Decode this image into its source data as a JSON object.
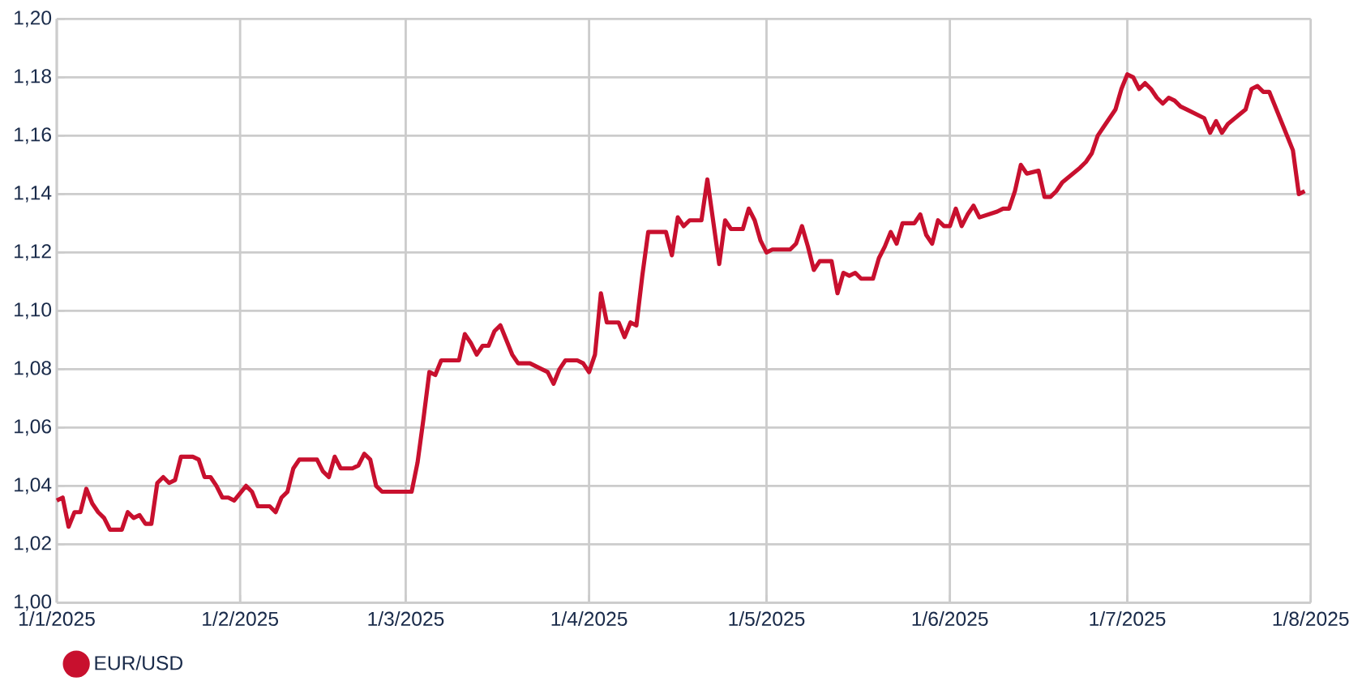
{
  "chart_data": {
    "type": "line",
    "x": [
      "2025-01-01",
      "2025-01-02",
      "2025-01-03",
      "2025-01-04",
      "2025-01-05",
      "2025-01-06",
      "2025-01-07",
      "2025-01-08",
      "2025-01-09",
      "2025-01-10",
      "2025-01-11",
      "2025-01-12",
      "2025-01-13",
      "2025-01-14",
      "2025-01-15",
      "2025-01-16",
      "2025-01-17",
      "2025-01-18",
      "2025-01-19",
      "2025-01-20",
      "2025-01-21",
      "2025-01-22",
      "2025-01-24",
      "2025-01-25",
      "2025-01-26",
      "2025-01-27",
      "2025-01-28",
      "2025-01-29",
      "2025-01-30",
      "2025-01-31",
      "2025-02-02",
      "2025-02-03",
      "2025-02-04",
      "2025-02-06",
      "2025-02-07",
      "2025-02-08",
      "2025-02-09",
      "2025-02-10",
      "2025-02-11",
      "2025-02-13",
      "2025-02-14",
      "2025-02-15",
      "2025-02-16",
      "2025-02-17",
      "2025-02-18",
      "2025-02-20",
      "2025-02-21",
      "2025-02-22",
      "2025-02-23",
      "2025-02-24",
      "2025-02-25",
      "2025-02-28",
      "2025-03-02",
      "2025-03-03",
      "2025-03-04",
      "2025-03-05",
      "2025-03-06",
      "2025-03-07",
      "2025-03-10",
      "2025-03-11",
      "2025-03-12",
      "2025-03-13",
      "2025-03-14",
      "2025-03-15",
      "2025-03-16",
      "2025-03-17",
      "2025-03-18",
      "2025-03-19",
      "2025-03-20",
      "2025-03-22",
      "2025-03-24",
      "2025-03-25",
      "2025-03-26",
      "2025-03-27",
      "2025-03-28",
      "2025-03-30",
      "2025-03-31",
      "2025-04-01",
      "2025-04-02",
      "2025-04-03",
      "2025-04-04",
      "2025-04-06",
      "2025-04-07",
      "2025-04-08",
      "2025-04-09",
      "2025-04-10",
      "2025-04-11",
      "2025-04-13",
      "2025-04-14",
      "2025-04-15",
      "2025-04-16",
      "2025-04-17",
      "2025-04-18",
      "2025-04-20",
      "2025-04-21",
      "2025-04-23",
      "2025-04-24",
      "2025-04-25",
      "2025-04-27",
      "2025-04-28",
      "2025-04-29",
      "2025-04-30",
      "2025-05-01",
      "2025-05-02",
      "2025-05-05",
      "2025-05-06",
      "2025-05-07",
      "2025-05-08",
      "2025-05-09",
      "2025-05-10",
      "2025-05-12",
      "2025-05-13",
      "2025-05-14",
      "2025-05-15",
      "2025-05-16",
      "2025-05-17",
      "2025-05-19",
      "2025-05-20",
      "2025-05-21",
      "2025-05-22",
      "2025-05-23",
      "2025-05-24",
      "2025-05-26",
      "2025-05-27",
      "2025-05-28",
      "2025-05-29",
      "2025-05-30",
      "2025-05-31",
      "2025-06-01",
      "2025-06-02",
      "2025-06-03",
      "2025-06-04",
      "2025-06-05",
      "2025-06-06",
      "2025-06-09",
      "2025-06-10",
      "2025-06-11",
      "2025-06-12",
      "2025-06-13",
      "2025-06-14",
      "2025-06-16",
      "2025-06-17",
      "2025-06-18",
      "2025-06-19",
      "2025-06-20",
      "2025-06-23",
      "2025-06-24",
      "2025-06-25",
      "2025-06-26",
      "2025-06-27",
      "2025-06-29",
      "2025-06-30",
      "2025-07-01",
      "2025-07-02",
      "2025-07-03",
      "2025-07-04",
      "2025-07-05",
      "2025-07-06",
      "2025-07-07",
      "2025-07-08",
      "2025-07-09",
      "2025-07-10",
      "2025-07-11",
      "2025-07-14",
      "2025-07-15",
      "2025-07-16",
      "2025-07-17",
      "2025-07-18",
      "2025-07-21",
      "2025-07-22",
      "2025-07-23",
      "2025-07-24",
      "2025-07-25",
      "2025-07-28",
      "2025-07-29",
      "2025-07-30",
      "2025-07-31"
    ],
    "series": [
      {
        "name": "EUR/USD",
        "color": "#c8102e",
        "values": [
          1.035,
          1.036,
          1.026,
          1.031,
          1.031,
          1.039,
          1.034,
          1.031,
          1.029,
          1.025,
          1.025,
          1.025,
          1.031,
          1.029,
          1.03,
          1.027,
          1.027,
          1.041,
          1.043,
          1.041,
          1.042,
          1.05,
          1.05,
          1.049,
          1.043,
          1.043,
          1.04,
          1.036,
          1.036,
          1.035,
          1.04,
          1.038,
          1.033,
          1.033,
          1.031,
          1.036,
          1.038,
          1.046,
          1.049,
          1.049,
          1.049,
          1.045,
          1.043,
          1.05,
          1.046,
          1.046,
          1.047,
          1.051,
          1.049,
          1.04,
          1.038,
          1.038,
          1.038,
          1.048,
          1.063,
          1.079,
          1.078,
          1.083,
          1.083,
          1.092,
          1.089,
          1.085,
          1.088,
          1.088,
          1.093,
          1.095,
          1.09,
          1.085,
          1.082,
          1.082,
          1.08,
          1.079,
          1.075,
          1.08,
          1.083,
          1.083,
          1.082,
          1.079,
          1.085,
          1.106,
          1.096,
          1.096,
          1.091,
          1.096,
          1.095,
          1.112,
          1.127,
          1.127,
          1.127,
          1.119,
          1.132,
          1.129,
          1.131,
          1.131,
          1.145,
          1.116,
          1.131,
          1.128,
          1.128,
          1.135,
          1.131,
          1.124,
          1.12,
          1.121,
          1.121,
          1.123,
          1.129,
          1.122,
          1.114,
          1.117,
          1.117,
          1.106,
          1.113,
          1.112,
          1.113,
          1.111,
          1.111,
          1.118,
          1.122,
          1.127,
          1.123,
          1.13,
          1.13,
          1.133,
          1.126,
          1.123,
          1.131,
          1.129,
          1.129,
          1.135,
          1.129,
          1.133,
          1.136,
          1.132,
          1.134,
          1.135,
          1.135,
          1.141,
          1.15,
          1.147,
          1.148,
          1.139,
          1.139,
          1.141,
          1.144,
          1.149,
          1.151,
          1.154,
          1.16,
          1.163,
          1.169,
          1.176,
          1.181,
          1.18,
          1.176,
          1.178,
          1.176,
          1.173,
          1.171,
          1.173,
          1.172,
          1.17,
          1.169,
          1.166,
          1.161,
          1.165,
          1.161,
          1.164,
          1.169,
          1.176,
          1.177,
          1.175,
          1.175,
          1.16,
          1.155,
          1.14,
          1.141
        ]
      }
    ],
    "xlim": [
      "2025-01-01",
      "2025-08-01"
    ],
    "xticks": [
      {
        "value": "2025-01-01",
        "label": "1/1/2025"
      },
      {
        "value": "2025-02-01",
        "label": "1/2/2025"
      },
      {
        "value": "2025-03-01",
        "label": "1/3/2025"
      },
      {
        "value": "2025-04-01",
        "label": "1/4/2025"
      },
      {
        "value": "2025-05-01",
        "label": "1/5/2025"
      },
      {
        "value": "2025-06-01",
        "label": "1/6/2025"
      },
      {
        "value": "2025-07-01",
        "label": "1/7/2025"
      },
      {
        "value": "2025-08-01",
        "label": "1/8/2025"
      }
    ],
    "ylim": [
      1.0,
      1.2
    ],
    "yticks": [
      {
        "value": 1.0,
        "label": "1,00"
      },
      {
        "value": 1.02,
        "label": "1,02"
      },
      {
        "value": 1.04,
        "label": "1,04"
      },
      {
        "value": 1.06,
        "label": "1,06"
      },
      {
        "value": 1.08,
        "label": "1,08"
      },
      {
        "value": 1.1,
        "label": "1,10"
      },
      {
        "value": 1.12,
        "label": "1,12"
      },
      {
        "value": 1.14,
        "label": "1,14"
      },
      {
        "value": 1.16,
        "label": "1,16"
      },
      {
        "value": 1.18,
        "label": "1,18"
      },
      {
        "value": 1.2,
        "label": "1,20"
      }
    ],
    "grid": true,
    "legend": "bottom left",
    "line_style": "solid"
  }
}
